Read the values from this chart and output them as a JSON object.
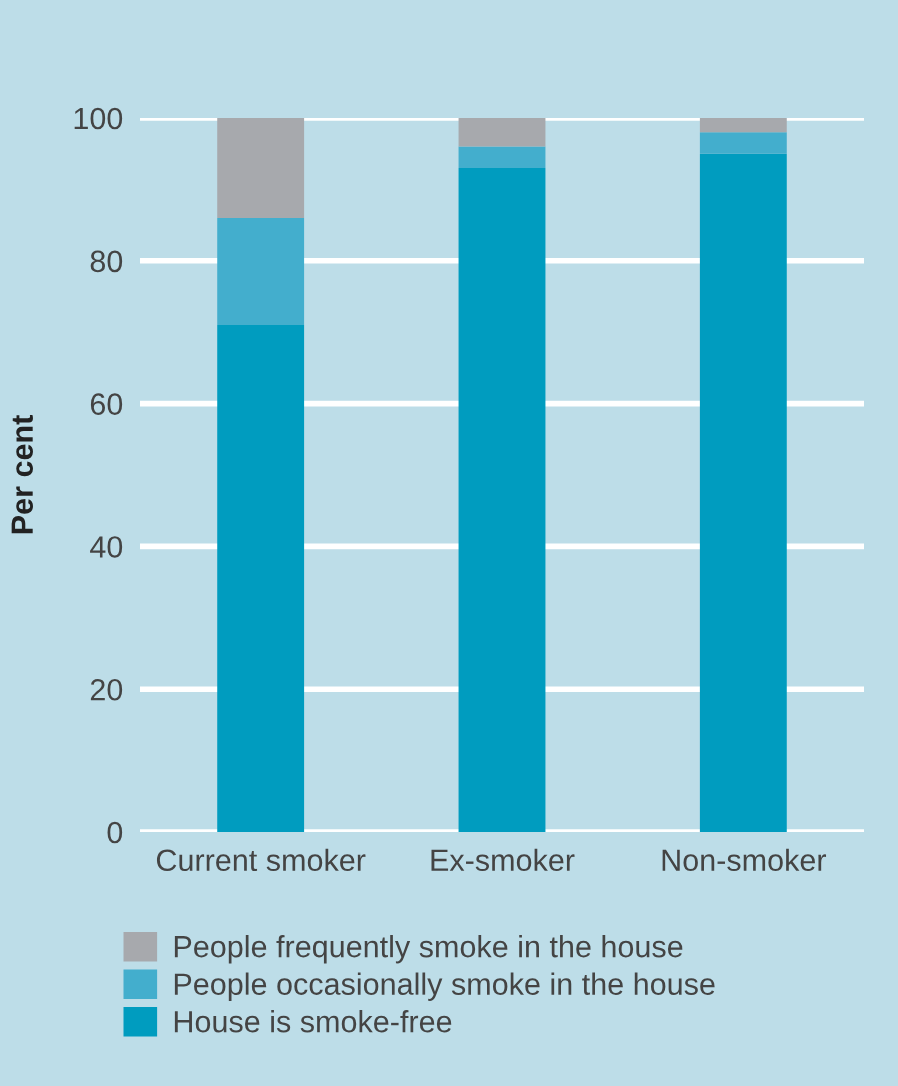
{
  "chart_data": {
    "type": "bar",
    "stacked": true,
    "ylabel": "Per cent",
    "categories": [
      "Current smoker",
      "Ex-smoker",
      "Non-smoker"
    ],
    "series": [
      {
        "name": "House is smoke-free",
        "color": "#009cbf",
        "values": [
          71,
          93,
          95
        ]
      },
      {
        "name": "People occasionally smoke in the house",
        "color": "#43aecd",
        "values": [
          15,
          3,
          3
        ]
      },
      {
        "name": "People frequently smoke in the house",
        "color": "#a7a9ad",
        "values": [
          14,
          4,
          2
        ]
      }
    ],
    "ylim": [
      0,
      100
    ],
    "yticks": [
      0,
      20,
      40,
      60,
      80,
      100
    ],
    "grid": "y",
    "legend": "bottom"
  }
}
